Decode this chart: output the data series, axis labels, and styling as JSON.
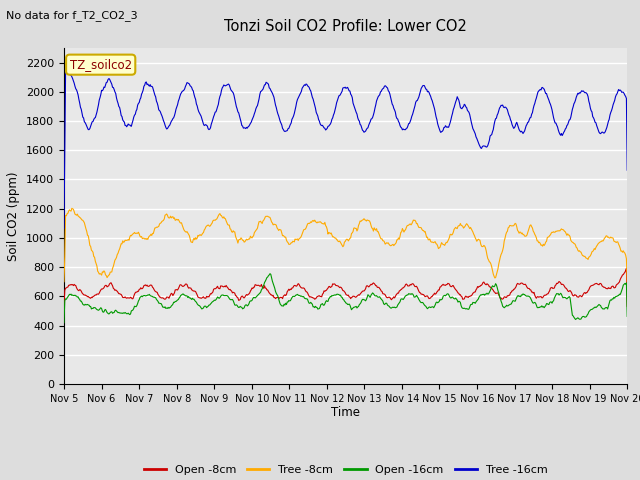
{
  "title": "Tonzi Soil CO2 Profile: Lower CO2",
  "subtitle": "No data for f_T2_CO2_3",
  "ylabel": "Soil CO2 (ppm)",
  "xlabel": "Time",
  "ylim": [
    0,
    2300
  ],
  "yticks": [
    0,
    200,
    400,
    600,
    800,
    1000,
    1200,
    1400,
    1600,
    1800,
    2000,
    2200
  ],
  "legend_label": "TZ_soilco2",
  "series_labels": [
    "Open -8cm",
    "Tree -8cm",
    "Open -16cm",
    "Tree -16cm"
  ],
  "series_colors": [
    "#cc0000",
    "#ffaa00",
    "#009900",
    "#0000cc"
  ],
  "background_color": "#dddddd",
  "plot_bg_color": "#e8e8e8",
  "grid_color": "#ffffff",
  "xtick_labels": [
    "Nov 5",
    "Nov 6",
    "Nov 7",
    "Nov 8",
    "Nov 9",
    "Nov 10",
    "Nov 11",
    "Nov 12",
    "Nov 13",
    "Nov 14",
    "Nov 15",
    "Nov 16",
    "Nov 17",
    "Nov 18",
    "Nov 19",
    "Nov 20"
  ],
  "n_points": 720
}
